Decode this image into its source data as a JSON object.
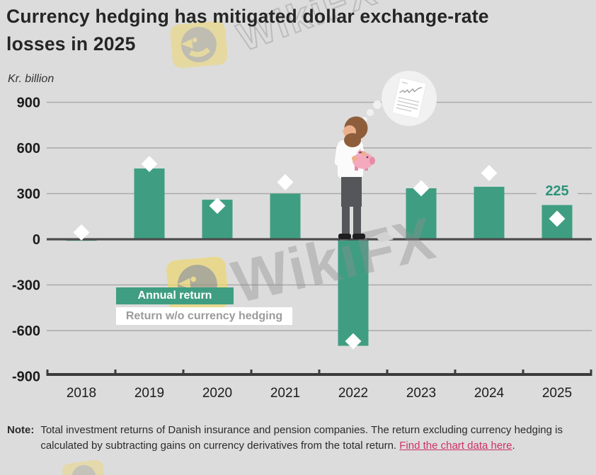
{
  "title": {
    "line1": "Currency hedging has mitigated dollar exchange-rate",
    "line2": "losses in 2025"
  },
  "legend": {
    "annual_return": "Annual return",
    "no_hedging": "Return w/o currency hedging"
  },
  "note": {
    "label": "Note:",
    "text": "Total investment returns of Danish insurance and pension companies. The return excluding currency hedging is calculated by subtracting gains on currency derivatives from the total return. ",
    "link_text": "Find the chart data here",
    "link_suffix": "."
  },
  "watermark": {
    "text": "WikiFX"
  },
  "colors": {
    "background": "#dcdcdd",
    "bar": "#3f9e81",
    "diamond": "#ffffff",
    "gridline": "#a9a9a9",
    "zero_axis": "#4b4b4b",
    "bottom_axis": "#3b3b3b",
    "tick_label": "#1c1c1c",
    "value_label": "#2c9477",
    "link": "#cf3263"
  },
  "chart_data": {
    "type": "bar",
    "title": "Currency hedging has mitigated dollar exchange-rate losses in 2025",
    "ylabel": "Kr. billion",
    "categories": [
      "2018",
      "2019",
      "2020",
      "2021",
      "2022",
      "2023",
      "2024",
      "2025"
    ],
    "series": [
      {
        "name": "Annual return",
        "type": "bar",
        "values": [
          -10,
          465,
          260,
          300,
          -700,
          335,
          345,
          225
        ]
      },
      {
        "name": "Return w/o currency hedging",
        "type": "scatter-diamond",
        "values": [
          45,
          495,
          220,
          375,
          -670,
          335,
          435,
          135
        ]
      }
    ],
    "ylim": [
      -900,
      900
    ],
    "yticks": [
      900,
      600,
      300,
      0,
      -300,
      -600,
      -900
    ],
    "grid": true,
    "legend_position": "inside-lower-left",
    "annotations": [
      {
        "category": "2025",
        "series": "Annual return",
        "text": "225"
      }
    ]
  }
}
